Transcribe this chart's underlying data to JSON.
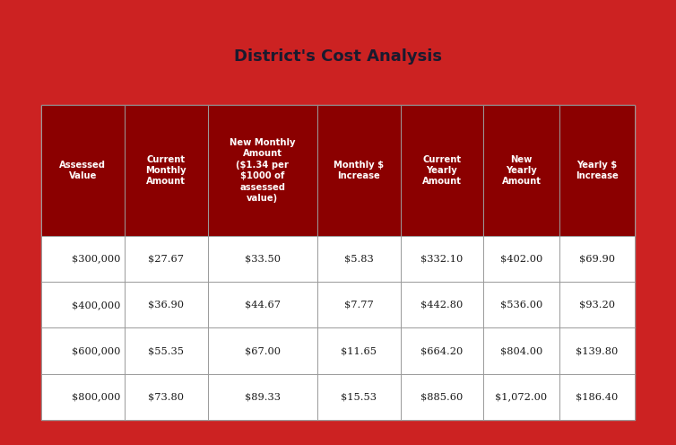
{
  "title": "District's Cost Analysis",
  "title_fontsize": 13,
  "title_color": "#1a1a2e",
  "outer_bg_color": "#cc2222",
  "title_box_bg": "#ffffff",
  "table_outer_bg": "#ffffff",
  "header_bg_color": "#8b0000",
  "header_text_color": "#ffffff",
  "cell_bg_color": "#ffffff",
  "cell_text_color": "#1a1a1a",
  "grid_color": "#999999",
  "col_headers": [
    "Assessed\nValue",
    "Current\nMonthly\nAmount",
    "New Monthly\nAmount\n($1.34 per\n$1000 of\nassessed\nvalue)",
    "Monthly $\nIncrease",
    "Current\nYearly\nAmount",
    "New\nYearly\nAmount",
    "Yearly $\nIncrease"
  ],
  "rows": [
    [
      "$300,000",
      "$27.67",
      "$33.50",
      "$5.83",
      "$332.10",
      "$402.00",
      "$69.90"
    ],
    [
      "$400,000",
      "$36.90",
      "$44.67",
      "$7.77",
      "$442.80",
      "$536.00",
      "$93.20"
    ],
    [
      "$600,000",
      "$55.35",
      "$67.00",
      "$11.65",
      "$664.20",
      "$804.00",
      "$139.80"
    ],
    [
      "$800,000",
      "$73.80",
      "$89.33",
      "$15.53",
      "$885.60",
      "$1,072.00",
      "$186.40"
    ]
  ],
  "col_widths_rel": [
    1.1,
    1.1,
    1.45,
    1.1,
    1.1,
    1.0,
    1.0
  ],
  "figsize": [
    7.54,
    4.96
  ],
  "dpi": 100
}
